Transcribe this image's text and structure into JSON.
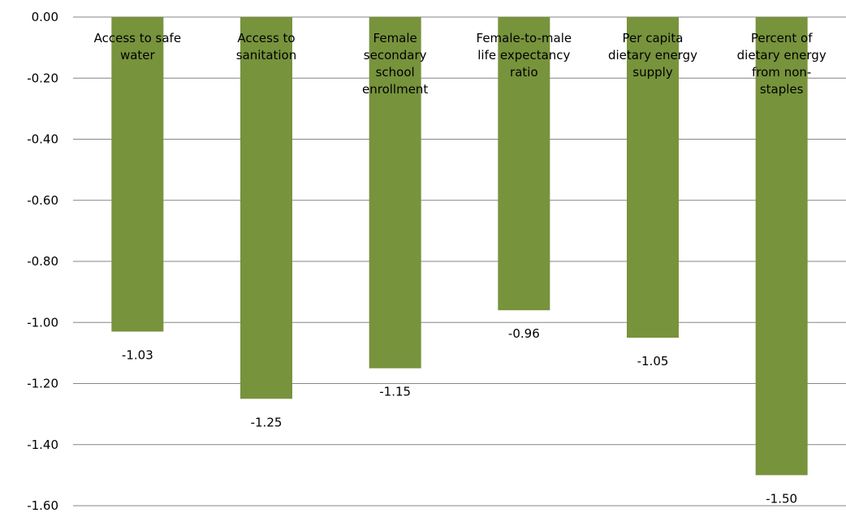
{
  "chart_data": {
    "type": "bar",
    "title": "",
    "xlabel": "",
    "ylabel": "",
    "ylim": [
      -1.6,
      0
    ],
    "yticks": [
      "0.00",
      "-0.20",
      "-0.40",
      "-0.60",
      "-0.80",
      "-1.00",
      "-1.20",
      "-1.40",
      "-1.60"
    ],
    "grid": true,
    "legend": "none",
    "bar_color": "#77933c",
    "categories": [
      [
        "Access to safe",
        "water"
      ],
      [
        "Access to",
        "sanitation"
      ],
      [
        "Female",
        "secondary",
        "school",
        "enrollment"
      ],
      [
        "Female-to-male",
        "life expectancy",
        "ratio"
      ],
      [
        "Per capita",
        "dietary energy",
        "supply"
      ],
      [
        "Percent of",
        "dietary energy",
        "from non-",
        "staples"
      ]
    ],
    "values": [
      -1.03,
      -1.25,
      -1.15,
      -0.96,
      -1.05,
      -1.5
    ],
    "data_labels": [
      "-1.03",
      "-1.25",
      "-1.15",
      "-0.96",
      "-1.05",
      "-1.50"
    ]
  }
}
